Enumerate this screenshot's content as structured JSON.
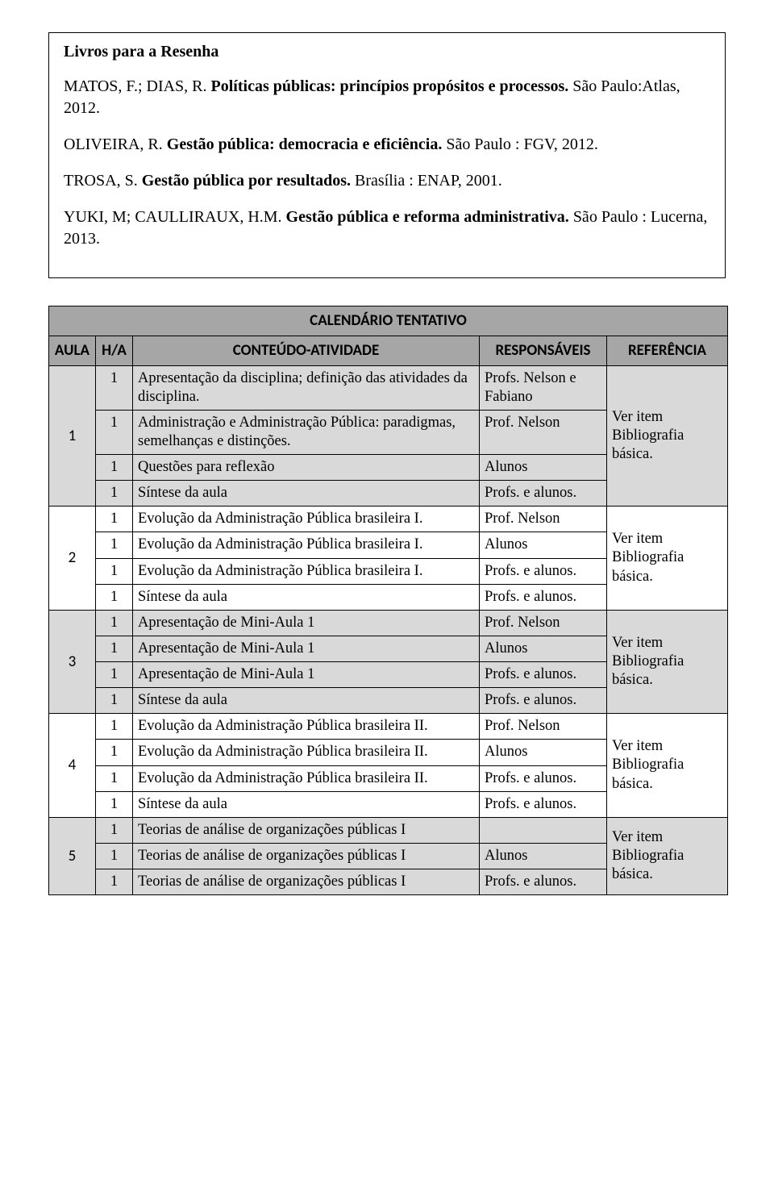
{
  "box": {
    "title": "Livros para a Resenha",
    "refs": [
      {
        "pre": "MATOS, F.; DIAS, R. ",
        "bold": "Políticas públicas: princípios propósitos e processos. ",
        "post": "São Paulo:Atlas, 2012."
      },
      {
        "pre": "OLIVEIRA, R. ",
        "bold": "Gestão pública: democracia e eficiência. ",
        "post": "São Paulo : FGV, 2012."
      },
      {
        "pre": "TROSA, S. ",
        "bold": "Gestão pública por resultados. ",
        "post": "Brasília : ENAP, 2001."
      },
      {
        "pre": "YUKI, M; CAULLIRAUX, H.M. ",
        "bold": "Gestão pública e reforma administrativa. ",
        "post": "São Paulo : Lucerna, 2013."
      }
    ]
  },
  "table": {
    "title": "CALENDÁRIO TENTATIVO",
    "headers": {
      "aula": "AULA",
      "ha": "H/A",
      "conteudo": "CONTEÚDO-ATIVIDADE",
      "resp": "RESPONSÁVEIS",
      "ref": "REFERÊNCIA"
    },
    "ref_text": "Ver item Bibliografia básica.",
    "groups": [
      {
        "aula": "1",
        "shade": true,
        "rows": [
          {
            "ha": "1",
            "content": "Apresentação da disciplina; definição das atividades da disciplina.",
            "resp": "Profs. Nelson e Fabiano"
          },
          {
            "ha": "1",
            "content": "Administração e Administração Pública: paradigmas, semelhanças e distinções.",
            "resp": "Prof. Nelson"
          },
          {
            "ha": "1",
            "content": "Questões para reflexão",
            "resp": "Alunos"
          },
          {
            "ha": "1",
            "content": "Síntese da aula",
            "resp": "Profs. e alunos."
          }
        ]
      },
      {
        "aula": "2",
        "shade": false,
        "rows": [
          {
            "ha": "1",
            "content": "Evolução da Administração Pública brasileira I.",
            "resp": "Prof. Nelson"
          },
          {
            "ha": "1",
            "content": "Evolução da Administração Pública brasileira I.",
            "resp": "Alunos"
          },
          {
            "ha": "1",
            "content": "Evolução da Administração Pública brasileira I.",
            "resp": "Profs. e alunos."
          },
          {
            "ha": "1",
            "content": "Síntese da aula",
            "resp": "Profs. e alunos."
          }
        ]
      },
      {
        "aula": "3",
        "shade": true,
        "rows": [
          {
            "ha": "1",
            "content": "Apresentação de Mini-Aula 1",
            "resp": "Prof. Nelson"
          },
          {
            "ha": "1",
            "content": "Apresentação de Mini-Aula 1",
            "resp": "Alunos"
          },
          {
            "ha": "1",
            "content": "Apresentação de Mini-Aula 1",
            "resp": "Profs. e alunos."
          },
          {
            "ha": "1",
            "content": "Síntese da aula",
            "resp": "Profs. e alunos."
          }
        ]
      },
      {
        "aula": "4",
        "shade": false,
        "rows": [
          {
            "ha": "1",
            "content": "Evolução da Administração Pública brasileira II.",
            "resp": "Prof. Nelson"
          },
          {
            "ha": "1",
            "content": "Evolução da Administração Pública brasileira II.",
            "resp": "Alunos"
          },
          {
            "ha": "1",
            "content": "Evolução da Administração Pública brasileira II.",
            "resp": "Profs. e alunos."
          },
          {
            "ha": "1",
            "content": "Síntese da aula",
            "resp": "Profs. e alunos."
          }
        ]
      },
      {
        "aula": "5",
        "shade": true,
        "rows": [
          {
            "ha": "1",
            "content": "Teorias de análise de organizações públicas I",
            "resp": ""
          },
          {
            "ha": "1",
            "content": "Teorias de análise de organizações públicas I",
            "resp": "Alunos"
          },
          {
            "ha": "1",
            "content": "Teorias de análise de organizações públicas I",
            "resp": "Profs. e alunos."
          }
        ]
      }
    ]
  },
  "colors": {
    "header_bg": "#a6a6a6",
    "shade_bg": "#d9d9d9",
    "border": "#000000",
    "page_bg": "#ffffff"
  }
}
